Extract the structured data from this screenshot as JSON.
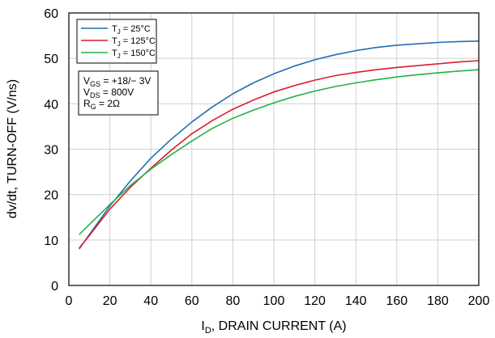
{
  "chart_data": {
    "type": "line",
    "title": "",
    "xlabel": {
      "main": "I",
      "sub": "D",
      "rest": ", DRAIN CURRENT  (A)"
    },
    "ylabel": "dv/dt, TURN-OFF  (V/ns)",
    "xlim": [
      0,
      200
    ],
    "ylim": [
      0,
      60
    ],
    "xticks": [
      0,
      20,
      40,
      60,
      80,
      100,
      120,
      140,
      160,
      180,
      200
    ],
    "yticks": [
      0,
      10,
      20,
      30,
      40,
      50,
      60
    ],
    "grid": true,
    "legend_position": "top-left",
    "series": [
      {
        "name": "T_J = 25°C",
        "label_parts": {
          "main": "T",
          "sub": "J",
          "rest": " = 25°C"
        },
        "color": "#1f6fb5",
        "x": [
          5,
          10,
          20,
          30,
          40,
          50,
          60,
          70,
          80,
          90,
          100,
          110,
          120,
          130,
          140,
          150,
          160,
          170,
          180,
          190,
          200
        ],
        "y": [
          8.0,
          11.2,
          17.5,
          23.0,
          28.0,
          32.2,
          36.0,
          39.3,
          42.2,
          44.6,
          46.6,
          48.3,
          49.7,
          50.8,
          51.7,
          52.4,
          52.9,
          53.2,
          53.5,
          53.7,
          53.8
        ]
      },
      {
        "name": "T_J = 125°C",
        "label_parts": {
          "main": "T",
          "sub": "J",
          "rest": " = 125°C"
        },
        "color": "#d8202a",
        "x": [
          5,
          10,
          20,
          30,
          40,
          50,
          60,
          70,
          80,
          90,
          100,
          110,
          120,
          130,
          140,
          150,
          160,
          170,
          180,
          190,
          200
        ],
        "y": [
          8.2,
          11.0,
          16.8,
          21.6,
          25.8,
          29.8,
          33.4,
          36.3,
          38.8,
          40.8,
          42.6,
          44.0,
          45.2,
          46.2,
          46.9,
          47.5,
          48.0,
          48.4,
          48.8,
          49.2,
          49.5
        ]
      },
      {
        "name": "T_J = 150°C",
        "label_parts": {
          "main": "T",
          "sub": "J",
          "rest": " = 150°C"
        },
        "color": "#22b34a",
        "x": [
          5,
          10,
          20,
          30,
          40,
          50,
          60,
          70,
          80,
          90,
          100,
          110,
          120,
          130,
          140,
          150,
          160,
          170,
          180,
          190,
          200
        ],
        "y": [
          11.2,
          13.4,
          17.8,
          22.0,
          25.6,
          28.8,
          31.8,
          34.6,
          36.8,
          38.6,
          40.2,
          41.6,
          42.8,
          43.8,
          44.6,
          45.3,
          45.9,
          46.4,
          46.8,
          47.2,
          47.5
        ]
      }
    ],
    "conditions": [
      {
        "main": "V",
        "sub": "GS",
        "rest": " = +18/− 3V"
      },
      {
        "main": "V",
        "sub": "DS",
        "rest": " = 800V"
      },
      {
        "main": "R",
        "sub": "G",
        "rest": "  = 2Ω"
      }
    ]
  }
}
